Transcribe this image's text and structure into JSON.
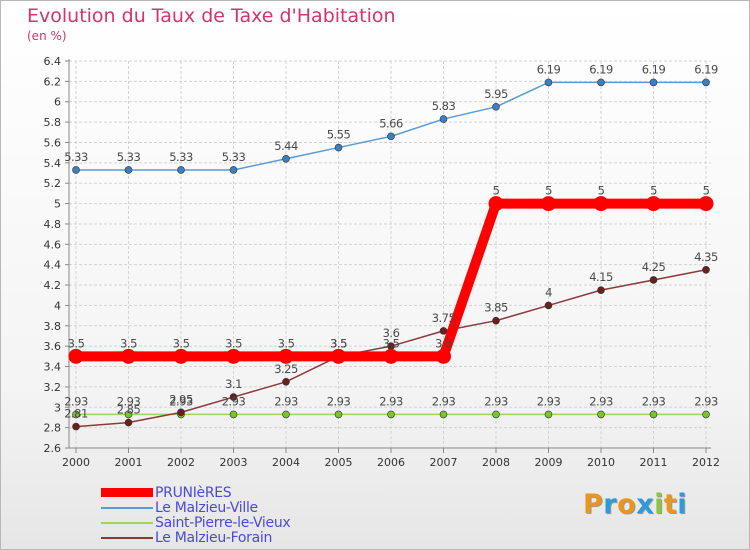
{
  "title": "Evolution du Taux de Taxe d'Habitation",
  "unit_label": "(en %)",
  "logo": {
    "text": "Proxiti",
    "letters": [
      {
        "ch": "P",
        "color": "#e8961e"
      },
      {
        "ch": "r",
        "color": "#2e9ad8"
      },
      {
        "ch": "o",
        "color": "#e8961e"
      },
      {
        "ch": "x",
        "color": "#2e9ad8"
      },
      {
        "ch": "i",
        "color": "#8cc63f"
      },
      {
        "ch": "t",
        "color": "#e8961e"
      },
      {
        "ch": "i",
        "color": "#2e9ad8"
      }
    ]
  },
  "chart_data": {
    "type": "line",
    "title": "Evolution du Taux de Taxe d'Habitation",
    "ylabel": "(en %)",
    "xlabel": "",
    "x": [
      "2000",
      "2001",
      "2002",
      "2003",
      "2004",
      "2005",
      "2006",
      "2007",
      "2008",
      "2009",
      "2010",
      "2011",
      "2012"
    ],
    "ylim": [
      2.6,
      6.4
    ],
    "yticks": [
      "2.6",
      "2.8",
      "3",
      "3.2",
      "3.4",
      "3.6",
      "3.8",
      "4",
      "4.2",
      "4.4",
      "4.6",
      "4.8",
      "5",
      "5.2",
      "5.4",
      "5.6",
      "5.8",
      "6",
      "6.2",
      "6.4"
    ],
    "grid": true,
    "legend_position": "bottom-left",
    "series": [
      {
        "name": "PRUNIèRES",
        "color": "#ff0000",
        "point_color": "#ff0000",
        "values": [
          3.5,
          3.5,
          3.5,
          3.5,
          3.5,
          3.5,
          3.5,
          3.5,
          5,
          5,
          5,
          5,
          5
        ],
        "labels": [
          "3.5",
          "3.5",
          "3.5",
          "3.5",
          "3.5",
          "3.5",
          "3.5",
          "3.5",
          "5",
          "5",
          "5",
          "5",
          "5"
        ]
      },
      {
        "name": "Le Malzieu-Ville",
        "color": "#5b9bd5",
        "point_color": "#3a7fc0",
        "values": [
          5.33,
          5.33,
          5.33,
          5.33,
          5.44,
          5.55,
          5.66,
          5.83,
          5.95,
          6.19,
          6.19,
          6.19,
          6.19
        ],
        "labels": [
          "5.33",
          "5.33",
          "5.33",
          "5.33",
          "5.44",
          "5.55",
          "5.66",
          "5.83",
          "5.95",
          "6.19",
          "6.19",
          "6.19",
          "6.19"
        ]
      },
      {
        "name": "Saint-Pierre-le-Vieux",
        "color": "#9cd65b",
        "point_color": "#7cc233",
        "values": [
          2.93,
          2.93,
          2.93,
          2.93,
          2.93,
          2.93,
          2.93,
          2.93,
          2.93,
          2.93,
          2.93,
          2.93,
          2.93
        ],
        "labels": [
          "2.93",
          "2.93",
          "2.93",
          "2.93",
          "2.93",
          "2.93",
          "2.93",
          "2.93",
          "2.93",
          "2.93",
          "2.93",
          "2.93",
          "2.93"
        ]
      },
      {
        "name": "Le Malzieu-Forain",
        "color": "#8b3a3a",
        "point_color": "#6b1f1f",
        "values": [
          2.81,
          2.85,
          2.95,
          3.1,
          3.25,
          3.5,
          3.6,
          3.75,
          3.85,
          4,
          4.15,
          4.25,
          4.35
        ],
        "labels": [
          "2.81",
          "2.85",
          "2.95",
          "3.1",
          "3.25",
          "3.5",
          "3.6",
          "3.75",
          "3.85",
          "4",
          "4.15",
          "4.25",
          "4.35"
        ]
      }
    ]
  }
}
